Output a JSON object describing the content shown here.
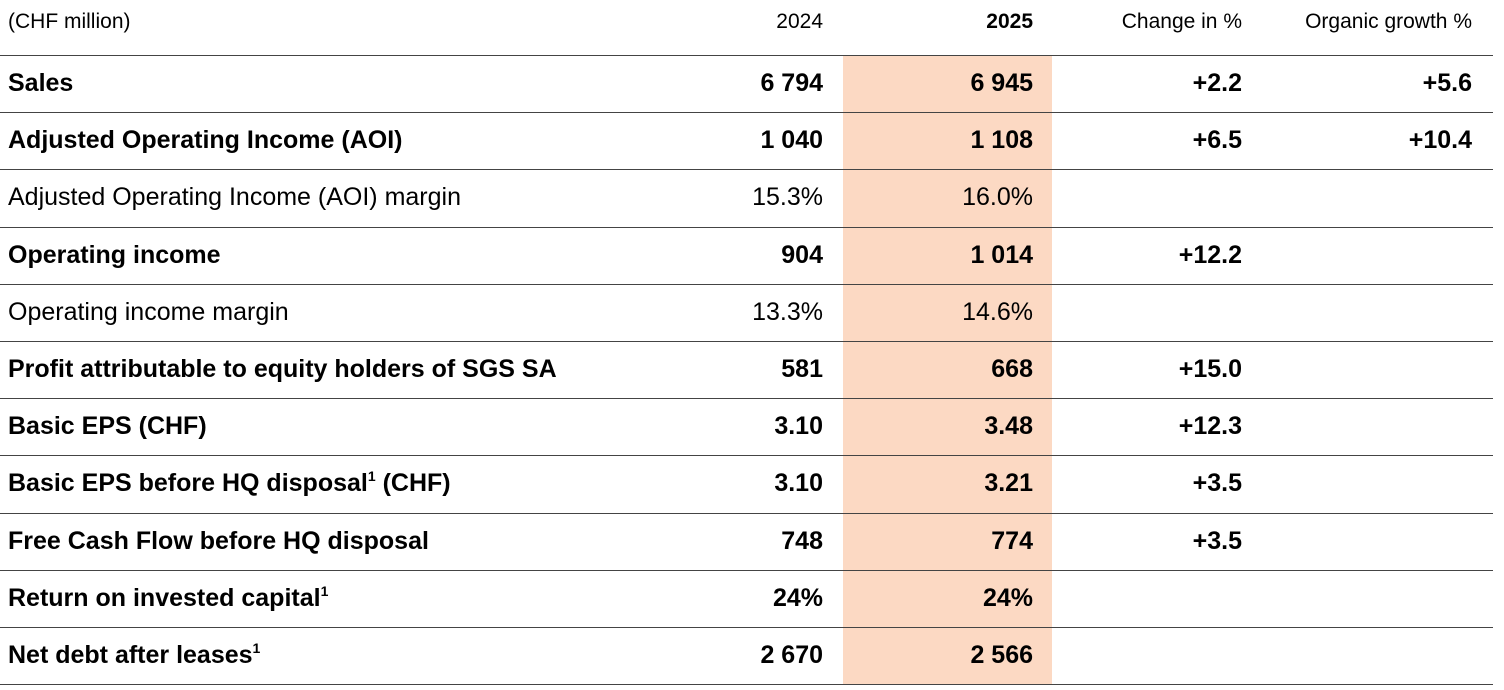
{
  "header": {
    "label": "(CHF million)",
    "columns": [
      "2024",
      "2025",
      "Change in %",
      "Organic growth %"
    ],
    "bold_column": 1
  },
  "highlight_column": 1,
  "rows": [
    {
      "label": "Sales",
      "bold": true,
      "cells": [
        "6 794",
        "6 945",
        "+2.2",
        "+5.6"
      ]
    },
    {
      "label": "Adjusted Operating Income (AOI)",
      "bold": true,
      "cells": [
        "1 040",
        "1 108",
        "+6.5",
        "+10.4"
      ]
    },
    {
      "label": "Adjusted Operating Income (AOI) margin",
      "bold": false,
      "cells": [
        "15.3%",
        "16.0%",
        null,
        null
      ]
    },
    {
      "label": "Operating income",
      "bold": true,
      "cells": [
        "904",
        "1 014",
        "+12.2",
        null
      ]
    },
    {
      "label": "Operating income margin",
      "bold": false,
      "cells": [
        "13.3%",
        "14.6%",
        null,
        null
      ]
    },
    {
      "label": "Profit attributable to equity holders of SGS SA",
      "bold": true,
      "cells": [
        "581",
        "668",
        "+15.0",
        null
      ]
    },
    {
      "label": "Basic EPS (CHF)",
      "bold": true,
      "cells": [
        "3.10",
        "3.48",
        "+12.3",
        null
      ]
    },
    {
      "label": "Basic EPS before HQ disposal",
      "footnote": "1",
      "suffix": " (CHF)",
      "bold": true,
      "cells": [
        "3.10",
        "3.21",
        "+3.5",
        null
      ]
    },
    {
      "label": "Free Cash Flow before HQ disposal",
      "bold": true,
      "cells": [
        "748",
        "774",
        "+3.5",
        null
      ]
    },
    {
      "label": "Return on invested capital",
      "footnote": "1",
      "bold": true,
      "cells": [
        "24%",
        "24%",
        null,
        null
      ]
    },
    {
      "label": "Net debt after leases",
      "footnote": "1",
      "bold": true,
      "cells": [
        "2 670",
        "2 566",
        null,
        null
      ]
    }
  ]
}
